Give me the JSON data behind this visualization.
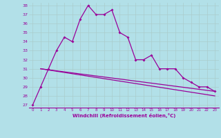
{
  "xlabel": "Windchill (Refroidissement éolien,°C)",
  "background_color": "#b2e0e8",
  "grid_color": "#aacccc",
  "line_color": "#990099",
  "x_values": [
    0,
    1,
    2,
    3,
    4,
    5,
    6,
    7,
    8,
    9,
    10,
    11,
    12,
    13,
    14,
    15,
    16,
    17,
    18,
    19,
    20,
    21,
    22,
    23
  ],
  "series1": [
    27.0,
    29.0,
    31.0,
    33.0,
    34.5,
    34.0,
    36.5,
    38.0,
    37.0,
    37.0,
    37.5,
    35.0,
    34.5,
    32.0,
    32.0,
    32.5,
    31.0,
    31.0,
    31.0,
    30.0,
    29.5,
    29.0,
    29.0,
    28.5
  ],
  "trend1_x": [
    1,
    23
  ],
  "trend1_y": [
    31.0,
    28.5
  ],
  "trend2_x": [
    1,
    23
  ],
  "trend2_y": [
    31.0,
    28.0
  ],
  "ylim": [
    27,
    38
  ],
  "yticks": [
    27,
    28,
    29,
    30,
    31,
    32,
    33,
    34,
    35,
    36,
    37,
    38
  ],
  "xlim": [
    -0.5,
    23.5
  ]
}
